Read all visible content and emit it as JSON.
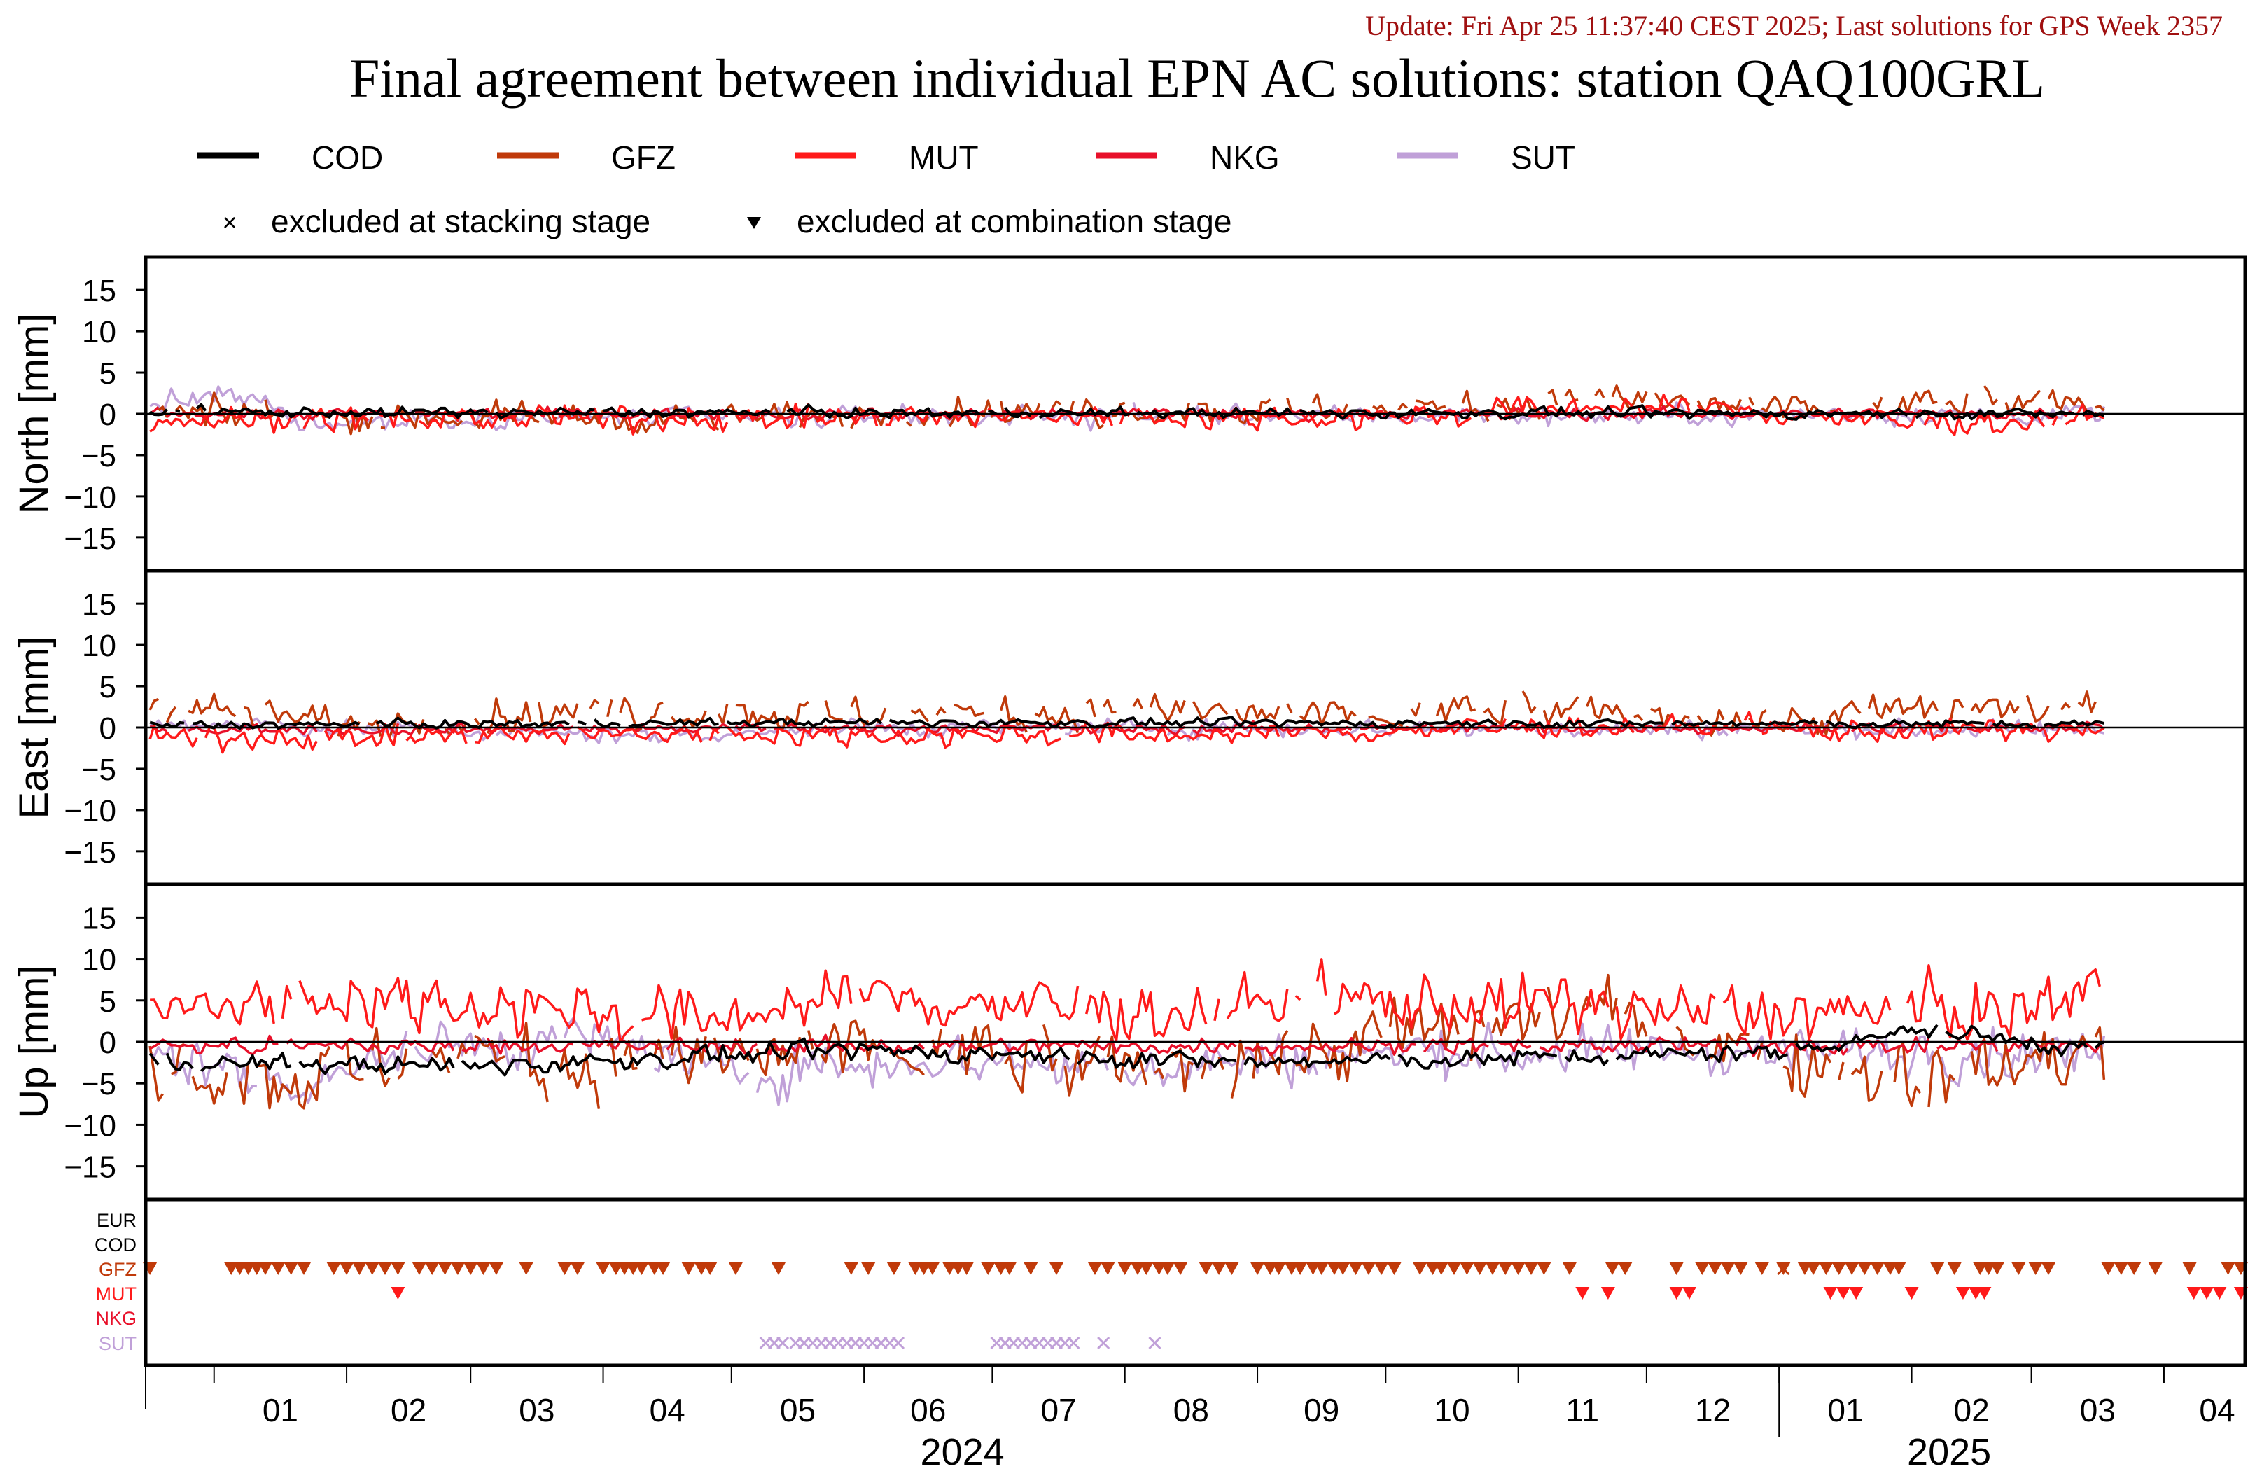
{
  "update_text": "Update: Fri Apr 25 11:37:40 CEST 2025; Last solutions for GPS Week 2357",
  "title": "Final agreement between individual EPN AC solutions: station QAQ100GRL",
  "colors": {
    "COD": "#000000",
    "GFZ": "#c03a0a",
    "MUT": "#ff1a1a",
    "NKG": "#e8102a",
    "SUT": "#c0a0d8",
    "EUR": "#000000",
    "update": "#a01010"
  },
  "legend": {
    "series": [
      "COD",
      "GFZ",
      "MUT",
      "NKG",
      "SUT"
    ],
    "excluded_stacking": "excluded at stacking stage",
    "excluded_combination": "excluded at combination stage"
  },
  "chart_data": {
    "type": "line",
    "x_range": [
      "2023-12-16",
      "2025-04-20"
    ],
    "x_months": [
      "01",
      "02",
      "03",
      "04",
      "05",
      "06",
      "07",
      "08",
      "09",
      "10",
      "11",
      "12",
      "01",
      "02",
      "03",
      "04"
    ],
    "x_years": [
      "2024",
      "2025"
    ],
    "last_data_date": "2025-03-18",
    "panels": [
      {
        "ylabel": "North [mm]",
        "ylim": [
          -19,
          19
        ],
        "yticks": [
          15,
          10,
          5,
          0,
          -5,
          -10,
          -15
        ]
      },
      {
        "ylabel": "East [mm]",
        "ylim": [
          -19,
          19
        ],
        "yticks": [
          15,
          10,
          5,
          0,
          -5,
          -10,
          -15
        ]
      },
      {
        "ylabel": "Up [mm]",
        "ylim": [
          -19,
          19
        ],
        "yticks": [
          15,
          10,
          5,
          0,
          -5,
          -10,
          -15
        ]
      }
    ],
    "series_profiles": {
      "North": {
        "COD": {
          "amp": 0.45,
          "anchors": [
            [
              "2024-01-01",
              0.2
            ],
            [
              "2025-03-18",
              0.0
            ]
          ]
        },
        "GFZ": {
          "amp": 1.3,
          "anchors": [
            [
              "2024-01-01",
              0.0
            ],
            [
              "2024-04-15",
              -0.5
            ],
            [
              "2024-07-01",
              0.3
            ],
            [
              "2024-10-01",
              0.5
            ],
            [
              "2024-11-15",
              1.8
            ],
            [
              "2025-01-15",
              0.3
            ],
            [
              "2025-02-15",
              1.5
            ],
            [
              "2025-03-18",
              1.0
            ]
          ]
        },
        "MUT": {
          "amp": 1.1,
          "anchors": [
            [
              "2024-01-01",
              -0.7
            ],
            [
              "2024-06-01",
              -0.5
            ],
            [
              "2024-10-15",
              -0.2
            ],
            [
              "2024-11-15",
              1.0
            ],
            [
              "2024-12-20",
              0.5
            ],
            [
              "2025-02-01",
              -1.2
            ],
            [
              "2025-03-18",
              -0.6
            ]
          ]
        },
        "NKG": {
          "amp": 0.5,
          "anchors": [
            [
              "2024-01-01",
              0.0
            ],
            [
              "2025-03-18",
              0.0
            ]
          ]
        },
        "SUT": {
          "amp": 0.9,
          "anchors": [
            [
              "2023-12-18",
              1.2
            ],
            [
              "2024-01-02",
              2.2
            ],
            [
              "2024-01-12",
              1.5
            ],
            [
              "2024-01-20",
              -1.2
            ],
            [
              "2024-03-01",
              -0.5
            ],
            [
              "2024-06-01",
              -0.3
            ],
            [
              "2025-03-18",
              0.0
            ]
          ]
        }
      },
      "East": {
        "COD": {
          "amp": 0.35,
          "anchors": [
            [
              "2024-01-01",
              0.3
            ],
            [
              "2024-05-15",
              0.6
            ],
            [
              "2025-03-18",
              0.4
            ]
          ]
        },
        "GFZ": {
          "amp": 1.5,
          "anchors": [
            [
              "2023-12-20",
              3.0
            ],
            [
              "2024-02-01",
              0.5
            ],
            [
              "2024-04-01",
              2.0
            ],
            [
              "2024-06-01",
              1.5
            ],
            [
              "2024-08-01",
              2.0
            ],
            [
              "2024-10-01",
              1.2
            ],
            [
              "2024-11-01",
              2.2
            ],
            [
              "2025-01-01",
              0.8
            ],
            [
              "2025-02-15",
              2.5
            ],
            [
              "2025-03-18",
              2.0
            ]
          ]
        },
        "MUT": {
          "amp": 1.0,
          "anchors": [
            [
              "2024-01-01",
              -1.3
            ],
            [
              "2024-05-01",
              -0.8
            ],
            [
              "2024-09-01",
              -0.9
            ],
            [
              "2024-11-15",
              0.2
            ],
            [
              "2025-01-15",
              -0.4
            ],
            [
              "2025-03-18",
              -0.2
            ]
          ]
        },
        "NKG": {
          "amp": 0.45,
          "anchors": [
            [
              "2024-01-01",
              -0.2
            ],
            [
              "2025-03-18",
              0.0
            ]
          ]
        },
        "SUT": {
          "amp": 0.8,
          "anchors": [
            [
              "2024-01-01",
              0.3
            ],
            [
              "2024-04-10",
              -1.0
            ],
            [
              "2024-06-01",
              0.0
            ],
            [
              "2025-03-18",
              -0.3
            ]
          ]
        }
      },
      "Up": {
        "COD": {
          "amp": 0.8,
          "anchors": [
            [
              "2024-01-01",
              -2.5
            ],
            [
              "2024-03-01",
              -3.0
            ],
            [
              "2024-06-01",
              -1.0
            ],
            [
              "2024-09-01",
              -2.5
            ],
            [
              "2024-11-01",
              -2.0
            ],
            [
              "2025-01-01",
              -1.2
            ],
            [
              "2025-02-01",
              1.5
            ],
            [
              "2025-03-18",
              -1.0
            ]
          ]
        },
        "GFZ": {
          "amp": 3.2,
          "anchors": [
            [
              "2023-12-20",
              -2.0
            ],
            [
              "2024-01-10",
              -5.0
            ],
            [
              "2024-03-01",
              -1.5
            ],
            [
              "2024-04-10",
              -3.0
            ],
            [
              "2024-06-01",
              -1.0
            ],
            [
              "2024-08-01",
              -3.5
            ],
            [
              "2024-10-15",
              1.0
            ],
            [
              "2024-11-15",
              4.0
            ],
            [
              "2025-01-15",
              -3.0
            ],
            [
              "2025-02-15",
              -4.0
            ],
            [
              "2025-03-18",
              -1.0
            ]
          ]
        },
        "MUT": {
          "amp": 2.6,
          "anchors": [
            [
              "2023-12-18",
              3.5
            ],
            [
              "2024-02-01",
              5.5
            ],
            [
              "2024-03-15",
              4.5
            ],
            [
              "2024-04-20",
              2.5
            ],
            [
              "2024-06-01",
              5.5
            ],
            [
              "2024-08-01",
              3.5
            ],
            [
              "2024-10-01",
              5.0
            ],
            [
              "2024-11-15",
              4.5
            ],
            [
              "2024-12-15",
              3.5
            ],
            [
              "2025-01-15",
              3.5
            ],
            [
              "2025-03-01",
              4.0
            ],
            [
              "2025-03-18",
              8.0
            ]
          ]
        },
        "NKG": {
          "amp": 0.7,
          "anchors": [
            [
              "2024-01-01",
              -0.5
            ],
            [
              "2025-03-18",
              -0.5
            ]
          ]
        },
        "SUT": {
          "amp": 2.2,
          "anchors": [
            [
              "2023-12-18",
              -1.5
            ],
            [
              "2024-01-20",
              -5.0
            ],
            [
              "2024-02-15",
              -1.0
            ],
            [
              "2024-04-01",
              0.5
            ],
            [
              "2024-05-01",
              -4.0
            ],
            [
              "2024-06-15",
              -2.0
            ],
            [
              "2024-08-01",
              -3.0
            ],
            [
              "2024-10-01",
              -1.5
            ],
            [
              "2025-01-01",
              -1.0
            ],
            [
              "2025-03-18",
              -1.5
            ]
          ]
        }
      }
    },
    "exclusion_panel": {
      "rows": [
        "EUR",
        "COD",
        "GFZ",
        "MUT",
        "NKG",
        "SUT"
      ],
      "combination_excluded": {
        "GFZ": [
          "2023-12-17",
          "2024-01-05",
          "2024-01-07",
          "2024-01-09",
          "2024-01-11",
          "2024-01-13",
          "2024-01-16",
          "2024-01-19",
          "2024-01-22",
          "2024-01-29",
          "2024-02-01",
          "2024-02-04",
          "2024-02-07",
          "2024-02-10",
          "2024-02-13",
          "2024-02-18",
          "2024-02-21",
          "2024-02-24",
          "2024-02-27",
          "2024-03-01",
          "2024-03-04",
          "2024-03-07",
          "2024-03-14",
          "2024-03-23",
          "2024-03-26",
          "2024-04-01",
          "2024-04-04",
          "2024-04-06",
          "2024-04-08",
          "2024-04-10",
          "2024-04-13",
          "2024-04-15",
          "2024-04-21",
          "2024-04-24",
          "2024-04-26",
          "2024-05-02",
          "2024-05-12",
          "2024-05-29",
          "2024-06-02",
          "2024-06-08",
          "2024-06-13",
          "2024-06-15",
          "2024-06-17",
          "2024-06-21",
          "2024-06-23",
          "2024-06-25",
          "2024-06-30",
          "2024-07-03",
          "2024-07-05",
          "2024-07-10",
          "2024-07-16",
          "2024-07-25",
          "2024-07-28",
          "2024-08-01",
          "2024-08-04",
          "2024-08-06",
          "2024-08-09",
          "2024-08-11",
          "2024-08-14",
          "2024-08-20",
          "2024-08-23",
          "2024-08-26",
          "2024-09-01",
          "2024-09-04",
          "2024-09-06",
          "2024-09-09",
          "2024-09-11",
          "2024-09-14",
          "2024-09-16",
          "2024-09-19",
          "2024-09-21",
          "2024-09-24",
          "2024-09-27",
          "2024-09-30",
          "2024-10-03",
          "2024-10-09",
          "2024-10-12",
          "2024-10-14",
          "2024-10-17",
          "2024-10-20",
          "2024-10-23",
          "2024-10-26",
          "2024-10-29",
          "2024-11-01",
          "2024-11-04",
          "2024-11-07",
          "2024-11-13",
          "2024-11-23",
          "2024-11-26",
          "2024-12-08",
          "2024-12-14",
          "2024-12-17",
          "2024-12-20",
          "2024-12-23",
          "2024-12-28",
          "2025-01-02",
          "2025-01-07",
          "2025-01-09",
          "2025-01-12",
          "2025-01-15",
          "2025-01-18",
          "2025-01-21",
          "2025-01-24",
          "2025-01-27",
          "2025-01-29",
          "2025-02-07",
          "2025-02-11",
          "2025-02-17",
          "2025-02-19",
          "2025-02-21",
          "2025-02-26",
          "2025-03-02",
          "2025-03-05",
          "2025-03-19",
          "2025-03-22",
          "2025-03-25",
          "2025-03-30",
          "2025-04-07",
          "2025-04-16",
          "2025-04-19"
        ],
        "MUT": [
          "2024-02-13",
          "2024-11-16",
          "2024-11-22",
          "2024-12-08",
          "2024-12-11",
          "2025-01-13",
          "2025-01-16",
          "2025-01-19",
          "2025-02-01",
          "2025-02-13",
          "2025-02-16",
          "2025-02-18",
          "2025-04-08",
          "2025-04-11",
          "2025-04-14",
          "2025-04-19"
        ]
      },
      "stacking_excluded": {
        "SUT": [
          "2024-05-09",
          "2024-05-11",
          "2024-05-13",
          "2024-05-16",
          "2024-05-18",
          "2024-05-20",
          "2024-05-22",
          "2024-05-24",
          "2024-05-26",
          "2024-05-28",
          "2024-05-30",
          "2024-06-01",
          "2024-06-03",
          "2024-06-05",
          "2024-06-07",
          "2024-06-09",
          "2024-07-02",
          "2024-07-04",
          "2024-07-06",
          "2024-07-08",
          "2024-07-10",
          "2024-07-12",
          "2024-07-14",
          "2024-07-16",
          "2024-07-18",
          "2024-07-20",
          "2024-07-27",
          "2024-08-08"
        ],
        "GFZ": [
          "2025-01-02"
        ]
      }
    }
  }
}
